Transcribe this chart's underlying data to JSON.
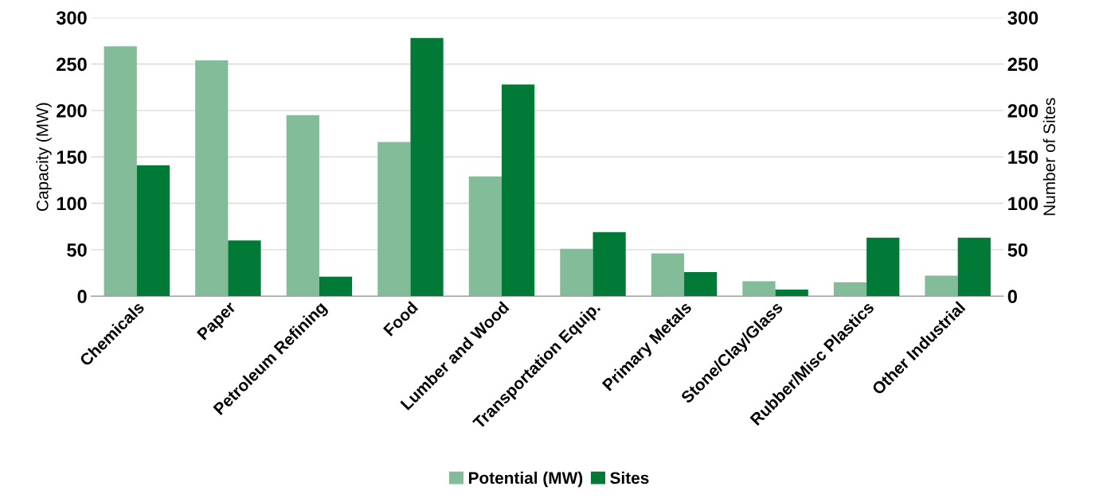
{
  "chart_data": {
    "type": "bar",
    "ylabel": "Capacity (MW)",
    "y2label": "Number of Sites",
    "categories": [
      "Chemicals",
      "Paper",
      "Petroleum Refining",
      "Food",
      "Lumber and Wood",
      "Transportation Equip.",
      "Primary Metals",
      "Stone/Clay/Glass",
      "Rubber/Misc Plastics",
      "Other Industrial"
    ],
    "series": [
      {
        "name": "Potential (MW)",
        "color": "#82bc98",
        "values": [
          269,
          254,
          195,
          166,
          129,
          51,
          46,
          16,
          15,
          22
        ]
      },
      {
        "name": "Sites",
        "color": "#017a38",
        "axis": "y2",
        "values": [
          141,
          60,
          21,
          278,
          228,
          69,
          26,
          7,
          63,
          63
        ]
      }
    ],
    "ylim": [
      0,
      300
    ],
    "yticks": [
      0,
      50,
      100,
      150,
      200,
      250,
      300
    ],
    "y2lim": [
      0,
      300
    ],
    "y2ticks": [
      0,
      50,
      100,
      150,
      200,
      250,
      300
    ],
    "grid": "y",
    "legend": "bottom"
  }
}
